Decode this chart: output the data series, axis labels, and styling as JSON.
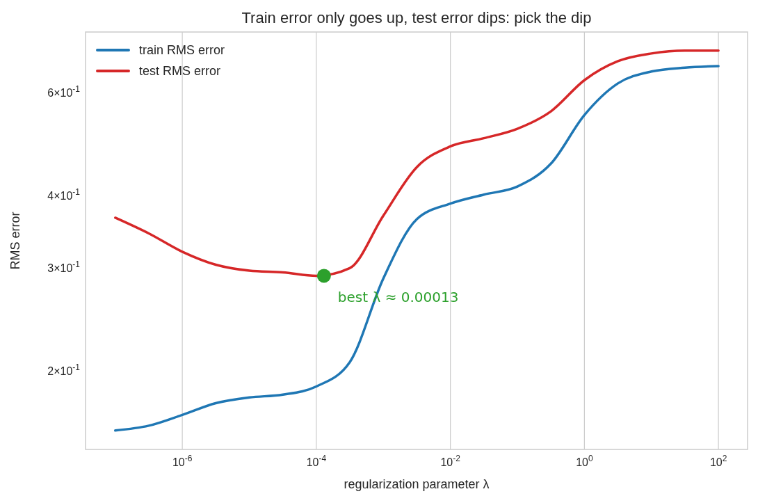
{
  "chart_data": {
    "type": "line",
    "title": "Train error only goes up, test error dips: pick the dip",
    "xlabel": "regularization parameter λ",
    "ylabel": "RMS error",
    "log": "xy",
    "grid": "x",
    "legend": "top left",
    "xlim": [
      3.6e-08,
      272
    ],
    "ylim": [
      0.1466,
      0.762
    ],
    "xticks": [
      {
        "value": 1e-06,
        "label": "10$^{-6}$"
      },
      {
        "value": 0.0001,
        "label": "10$^{-4}$"
      },
      {
        "value": 0.01,
        "label": "10$^{-2}$"
      },
      {
        "value": 1,
        "label": "10$^{0}$"
      },
      {
        "value": 100,
        "label": "10$^{2}$"
      }
    ],
    "yticks": [
      {
        "value": 0.2,
        "label": "2×10$^{-1}$"
      },
      {
        "value": 0.3,
        "label": "3×10$^{-1}$"
      },
      {
        "value": 0.4,
        "label": "4×10$^{-1}$"
      },
      {
        "value": 0.6,
        "label": "6×10$^{-1}$"
      }
    ],
    "x": [
      1e-07,
      3.16e-07,
      1e-06,
      3.16e-06,
      1e-05,
      3.16e-05,
      0.0001,
      0.000316,
      0.001,
      0.00316,
      0.01,
      0.0316,
      0.1,
      0.316,
      1,
      3.16,
      10,
      31.6,
      100
    ],
    "series": [
      {
        "name": "train RMS error",
        "color": "#1f77b4",
        "values": [
          0.158,
          0.161,
          0.168,
          0.176,
          0.18,
          0.182,
          0.188,
          0.207,
          0.288,
          0.364,
          0.387,
          0.401,
          0.414,
          0.453,
          0.549,
          0.622,
          0.652,
          0.662,
          0.666
        ]
      },
      {
        "name": "test RMS error",
        "color": "#d62728",
        "values": [
          0.366,
          0.344,
          0.32,
          0.304,
          0.297,
          0.295,
          0.291,
          0.3,
          0.369,
          0.447,
          0.485,
          0.501,
          0.52,
          0.557,
          0.63,
          0.679,
          0.7,
          0.708,
          0.708
        ]
      },
      {
        "type": "scatter",
        "marker": "circle",
        "color": "#2ca02c",
        "x": [
          0.00013
        ],
        "values": [
          0.291
        ]
      }
    ],
    "annotations": [
      {
        "text": "best λ ≈ 0.00013",
        "x": 0.00013,
        "y": 0.291
      }
    ]
  }
}
